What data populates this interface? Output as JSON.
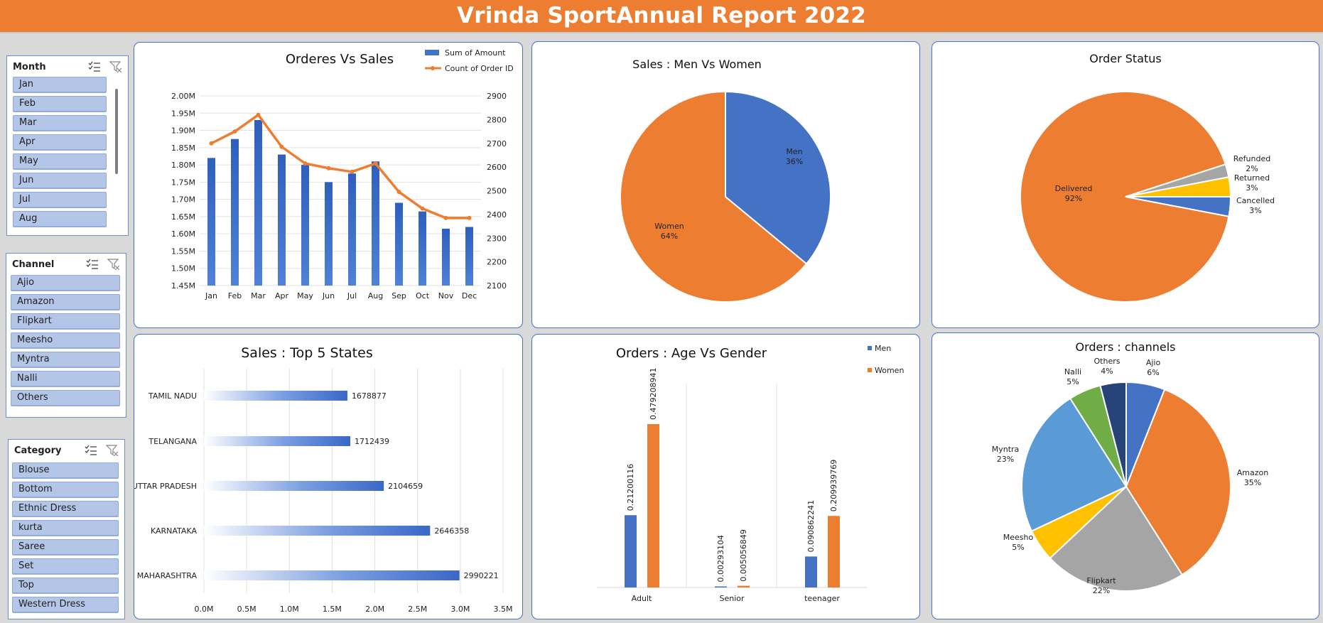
{
  "report_title": "Vrinda SportAnnual Report 2022",
  "colors": {
    "blue": "#4472c4",
    "orange": "#ed7d31",
    "gray": "#a5a5a5",
    "yellow": "#ffc000",
    "lightblue": "#5b9bd5",
    "green": "#70ad47",
    "navy": "#264478"
  },
  "slicers": {
    "month": {
      "title": "Month",
      "items": [
        "Jan",
        "Feb",
        "Mar",
        "Apr",
        "May",
        "Jun",
        "Jul",
        "Aug"
      ]
    },
    "channel": {
      "title": "Channel",
      "items": [
        "Ajio",
        "Amazon",
        "Flipkart",
        "Meesho",
        "Myntra",
        "Nalli",
        "Others"
      ]
    },
    "category": {
      "title": "Category",
      "items": [
        "Blouse",
        "Bottom",
        "Ethnic Dress",
        "kurta",
        "Saree",
        "Set",
        "Top",
        "Western Dress"
      ]
    }
  },
  "chart_data": [
    {
      "id": "orders_vs_sales",
      "type": "bar",
      "title": "Orderes Vs Sales",
      "categories": [
        "Jan",
        "Feb",
        "Mar",
        "Apr",
        "May",
        "Jun",
        "Jul",
        "Aug",
        "Sep",
        "Oct",
        "Nov",
        "Dec"
      ],
      "series": [
        {
          "name": "Sum of Amount",
          "type": "bar",
          "axis": "left",
          "values": [
            1.82,
            1.875,
            1.93,
            1.83,
            1.8,
            1.75,
            1.775,
            1.81,
            1.69,
            1.665,
            1.615,
            1.62
          ]
        },
        {
          "name": "Count of Order ID",
          "type": "line",
          "axis": "right",
          "values": [
            2700,
            2750,
            2820,
            2685,
            2615,
            2595,
            2580,
            2615,
            2495,
            2425,
            2385,
            2385
          ]
        }
      ],
      "y_left": {
        "min": 1.45,
        "max": 2.0,
        "step": 0.05,
        "ticks": [
          "1.45M",
          "1.50M",
          "1.55M",
          "1.60M",
          "1.65M",
          "1.70M",
          "1.75M",
          "1.80M",
          "1.85M",
          "1.90M",
          "1.95M",
          "2.00M"
        ]
      },
      "y_right": {
        "min": 2100,
        "max": 2900,
        "step": 100,
        "ticks": [
          "2100",
          "2200",
          "2300",
          "2400",
          "2500",
          "2600",
          "2700",
          "2800",
          "2900"
        ]
      },
      "legend": "top-right",
      "grid": true
    },
    {
      "id": "men_vs_women",
      "type": "pie",
      "title": "Sales : Men Vs Women",
      "slices": [
        {
          "label": "Men",
          "pct": "36%",
          "value": 36
        },
        {
          "label": "Women",
          "pct": "64%",
          "value": 64
        }
      ]
    },
    {
      "id": "order_status",
      "type": "pie",
      "title": "Order Status",
      "slices": [
        {
          "label": "Delivered",
          "pct": "92%",
          "value": 92
        },
        {
          "label": "Refunded",
          "pct": "2%",
          "value": 2
        },
        {
          "label": "Returned",
          "pct": "3%",
          "value": 3
        },
        {
          "label": "Cancelled",
          "pct": "3%",
          "value": 3
        }
      ]
    },
    {
      "id": "top5_states",
      "type": "bar",
      "orientation": "horizontal",
      "title": "Sales : Top 5 States",
      "categories": [
        "TAMIL NADU",
        "TELANGANA",
        "UTTAR PRADESH",
        "KARNATAKA",
        "MAHARASHTRA"
      ],
      "values": [
        1678877,
        1712439,
        2104659,
        2646358,
        2990221
      ],
      "value_labels": [
        "1678877",
        "1712439",
        "2104659",
        "2646358",
        "2990221"
      ],
      "x_ticks": [
        "0.0M",
        "0.5M",
        "1.0M",
        "1.5M",
        "2.0M",
        "2.5M",
        "3.0M",
        "3.5M"
      ],
      "xlim": [
        0,
        3500000
      ],
      "grid": true
    },
    {
      "id": "age_vs_gender",
      "type": "bar",
      "title": "Orders : Age Vs Gender",
      "categories": [
        "Adult",
        "Senior",
        "teenager"
      ],
      "series": [
        {
          "name": "Men",
          "values": [
            0.21200116,
            0.00293104,
            0.090862241
          ],
          "labels": [
            "0.21200116",
            "0.00293104",
            "0.090862241"
          ]
        },
        {
          "name": "Women",
          "values": [
            0.479208941,
            0.005056849,
            0.209939769
          ],
          "labels": [
            "0.479208941",
            "0.005056849",
            "0.209939769"
          ]
        }
      ],
      "ylim": [
        0,
        0.6
      ],
      "legend": "top-right"
    },
    {
      "id": "orders_channels",
      "type": "pie",
      "title": "Orders : channels",
      "slices": [
        {
          "label": "Ajio",
          "pct": "6%",
          "value": 6
        },
        {
          "label": "Amazon",
          "pct": "35%",
          "value": 35
        },
        {
          "label": "Flipkart",
          "pct": "22%",
          "value": 22
        },
        {
          "label": "Meesho",
          "pct": "5%",
          "value": 5
        },
        {
          "label": "Myntra",
          "pct": "23%",
          "value": 23
        },
        {
          "label": "Nalli",
          "pct": "5%",
          "value": 5
        },
        {
          "label": "Others",
          "pct": "4%",
          "value": 4
        }
      ]
    }
  ]
}
